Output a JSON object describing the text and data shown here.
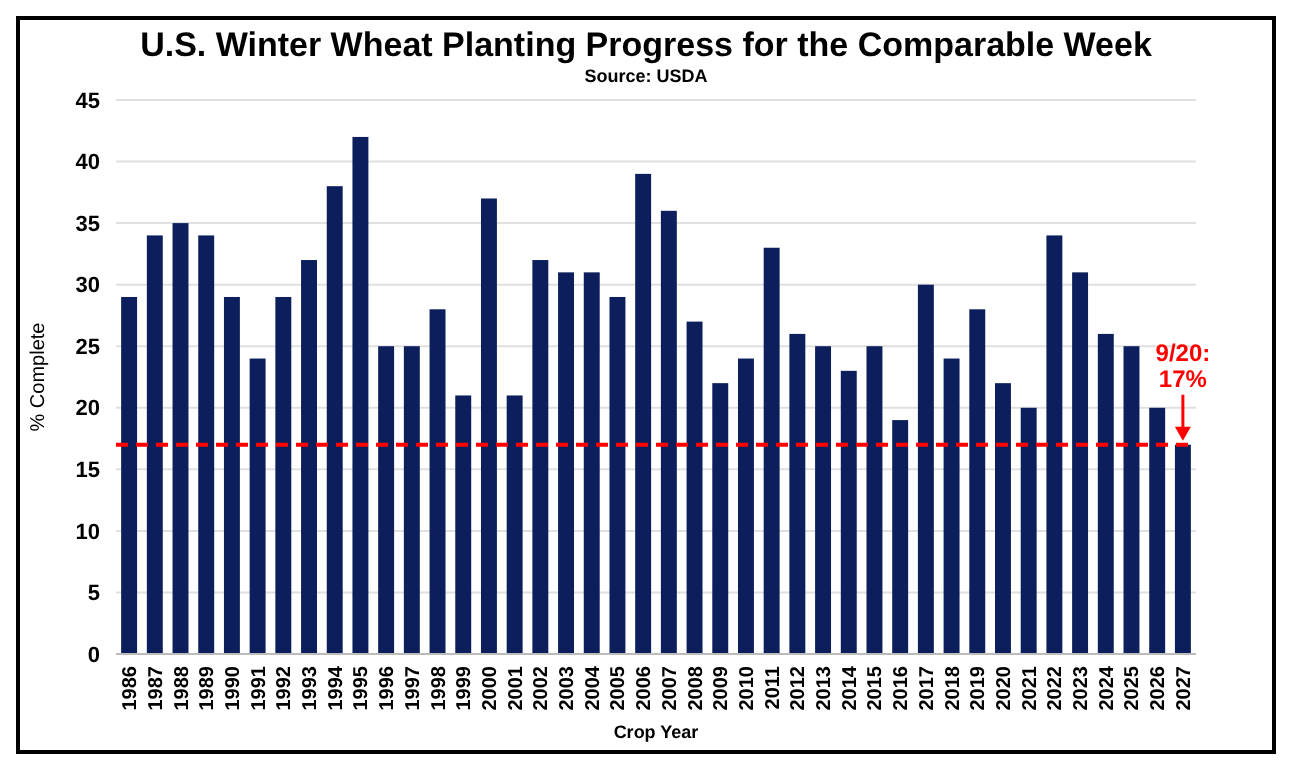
{
  "chart_data": {
    "type": "bar",
    "title": "U.S. Winter Wheat Planting Progress for the Comparable Week",
    "subtitle": "Source: USDA",
    "xlabel": "Crop Year",
    "ylabel": "% Complete",
    "categories": [
      "1986",
      "1987",
      "1988",
      "1989",
      "1990",
      "1991",
      "1992",
      "1993",
      "1994",
      "1995",
      "1996",
      "1997",
      "1998",
      "1999",
      "2000",
      "2001",
      "2002",
      "2003",
      "2004",
      "2005",
      "2006",
      "2007",
      "2008",
      "2009",
      "2010",
      "2011",
      "2012",
      "2013",
      "2014",
      "2015",
      "2016",
      "2017",
      "2018",
      "2019",
      "2020",
      "2021",
      "2022",
      "2023",
      "2024",
      "2025",
      "2026",
      "2027"
    ],
    "values": [
      29,
      34,
      35,
      34,
      29,
      24,
      29,
      32,
      38,
      42,
      25,
      25,
      28,
      21,
      37,
      21,
      32,
      31,
      31,
      29,
      39,
      36,
      27,
      22,
      24,
      33,
      26,
      25,
      23,
      25,
      19,
      30,
      24,
      28,
      22,
      20,
      34,
      31,
      26,
      25,
      20,
      17
    ],
    "color": "#0c1f5c",
    "ylim": [
      0,
      45
    ],
    "yticks": [
      0,
      5,
      10,
      15,
      20,
      25,
      30,
      35,
      40,
      45
    ],
    "grid": "y",
    "ref_lines": [
      {
        "axis": "y",
        "value": 17,
        "color": "#ff0000",
        "line_style": "dashed"
      }
    ],
    "annotations": [
      {
        "text": "9/20:\n17%",
        "x": "2027",
        "y": 17
      }
    ]
  }
}
